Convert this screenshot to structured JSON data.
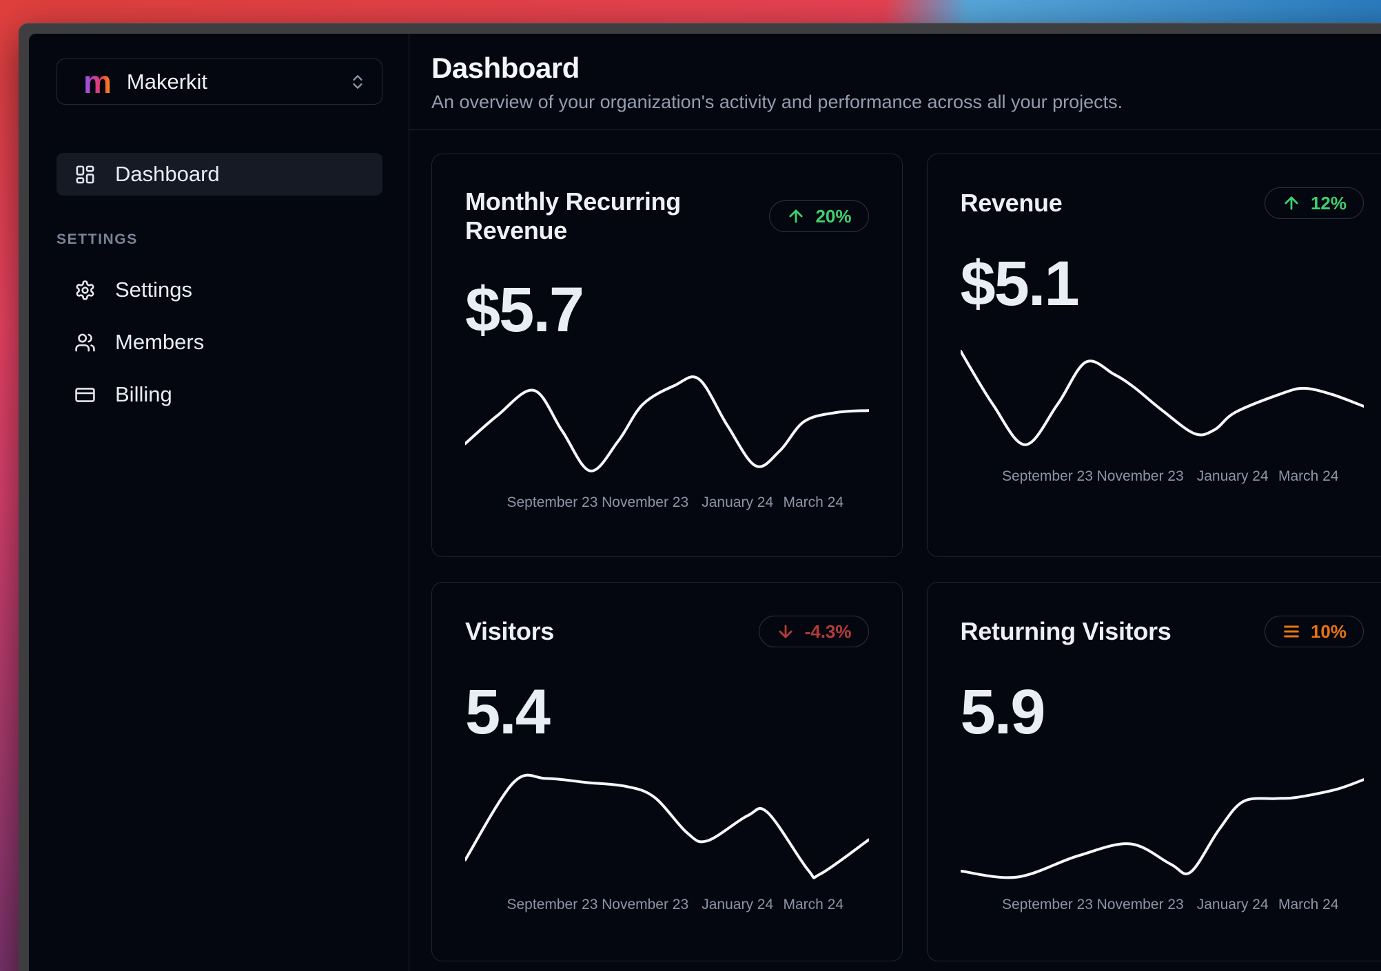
{
  "sidebar": {
    "team_selector": {
      "logo_letter": "m",
      "name": "Makerkit",
      "icon": "chevrons-up-down-icon"
    },
    "nav_items": [
      {
        "label": "Dashboard",
        "icon": "layout-dashboard-icon",
        "active": true
      }
    ],
    "section_label": "SETTINGS",
    "settings_items": [
      {
        "label": "Settings",
        "icon": "gear-icon"
      },
      {
        "label": "Members",
        "icon": "users-icon"
      },
      {
        "label": "Billing",
        "icon": "credit-card-icon"
      }
    ]
  },
  "header": {
    "title": "Dashboard",
    "subtitle": "An overview of your organization's activity and performance across all your projects."
  },
  "colors": {
    "positive": "#40d06e",
    "negative": "#b33b3b",
    "neutral": "#ea740f",
    "line": "#f5f7fa",
    "card_border": "#1e2534"
  },
  "chart_data": [
    {
      "type": "line",
      "title": "Monthly Recurring Revenue",
      "value": "$5.7",
      "trend": {
        "icon": "arrow-up",
        "label": "20%",
        "color": "#40d06e"
      },
      "x_ticks": [
        "September 23",
        "November 23",
        "January 24",
        "March 24"
      ],
      "ylim": [
        0,
        100
      ],
      "points": [
        [
          0,
          32
        ],
        [
          8,
          60
        ],
        [
          17,
          85
        ],
        [
          24,
          45
        ],
        [
          31,
          5
        ],
        [
          38,
          35
        ],
        [
          44,
          71
        ],
        [
          52,
          90
        ],
        [
          58,
          96
        ],
        [
          65,
          50
        ],
        [
          72,
          10
        ],
        [
          78,
          25
        ],
        [
          84,
          54
        ],
        [
          92,
          63
        ],
        [
          100,
          65
        ]
      ]
    },
    {
      "type": "line",
      "title": "Revenue",
      "value": "$5.1",
      "trend": {
        "icon": "arrow-up",
        "label": "12%",
        "color": "#40d06e"
      },
      "x_ticks": [
        "September 23",
        "November 23",
        "January 24",
        "March 24"
      ],
      "ylim": [
        0,
        100
      ],
      "points": [
        [
          0,
          98
        ],
        [
          8,
          45
        ],
        [
          16,
          5
        ],
        [
          24,
          45
        ],
        [
          31,
          87
        ],
        [
          38,
          75
        ],
        [
          43,
          62
        ],
        [
          50,
          39
        ],
        [
          58,
          16
        ],
        [
          63,
          20
        ],
        [
          68,
          37
        ],
        [
          79,
          55
        ],
        [
          85,
          61
        ],
        [
          92,
          55
        ],
        [
          100,
          43
        ]
      ]
    },
    {
      "type": "line",
      "title": "Visitors",
      "value": "5.4",
      "trend": {
        "icon": "arrow-down",
        "label": "-4.3%",
        "color": "#b33b3b"
      },
      "x_ticks": [
        "September 23",
        "November 23",
        "January 24",
        "March 24"
      ],
      "ylim": [
        0,
        100
      ],
      "points": [
        [
          0,
          18
        ],
        [
          12,
          95
        ],
        [
          20,
          99
        ],
        [
          30,
          95
        ],
        [
          40,
          91
        ],
        [
          47,
          80
        ],
        [
          55,
          45
        ],
        [
          60,
          37
        ],
        [
          70,
          62
        ],
        [
          75,
          65
        ],
        [
          85,
          8
        ],
        [
          88,
          4
        ],
        [
          100,
          38
        ]
      ]
    },
    {
      "type": "line",
      "title": "Returning Visitors",
      "value": "5.9",
      "trend": {
        "icon": "menu",
        "label": "10%",
        "color": "#ea740f"
      },
      "x_ticks": [
        "September 23",
        "November 23",
        "January 24",
        "March 24"
      ],
      "ylim": [
        0,
        100
      ],
      "points": [
        [
          0,
          7
        ],
        [
          14,
          1
        ],
        [
          29,
          22
        ],
        [
          42,
          34
        ],
        [
          52,
          14
        ],
        [
          57,
          6
        ],
        [
          64,
          48
        ],
        [
          70,
          76
        ],
        [
          78,
          79
        ],
        [
          83,
          80
        ],
        [
          93,
          88
        ],
        [
          100,
          98
        ]
      ]
    }
  ]
}
